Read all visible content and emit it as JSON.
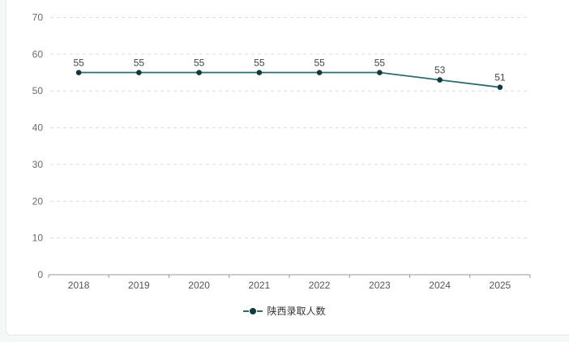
{
  "page": {
    "background": "#f5f8f8",
    "card_background": "#ffffff",
    "card_border": "#e4eae9"
  },
  "chart_data": {
    "type": "line",
    "title": "",
    "xlabel": "",
    "ylabel": "",
    "categories": [
      "2018",
      "2019",
      "2020",
      "2021",
      "2022",
      "2023",
      "2024",
      "2025"
    ],
    "series": [
      {
        "name": "陕西录取人数",
        "values": [
          55,
          55,
          55,
          55,
          55,
          55,
          53,
          51
        ],
        "color": "#2d6b6d",
        "point_color": "#123a3e"
      }
    ],
    "ylim": [
      0,
      70
    ],
    "yticks": [
      0,
      10,
      20,
      30,
      40,
      50,
      60,
      70
    ],
    "grid": true,
    "grid_style": "dashed",
    "show_value_labels": true,
    "legend_position": "bottom-center"
  },
  "legend": {
    "items": [
      {
        "label": "陕西录取人数",
        "color": "#2d6b6d",
        "point_color": "#123a3e",
        "marker": "dash-dot-dash"
      }
    ]
  },
  "colors": {
    "grid": "#dcdcdc",
    "axis": "#999999",
    "y_tick_label": "#6b6b6b",
    "x_tick_label": "#555555",
    "value_label": "#444444",
    "legend_text": "#333333"
  }
}
